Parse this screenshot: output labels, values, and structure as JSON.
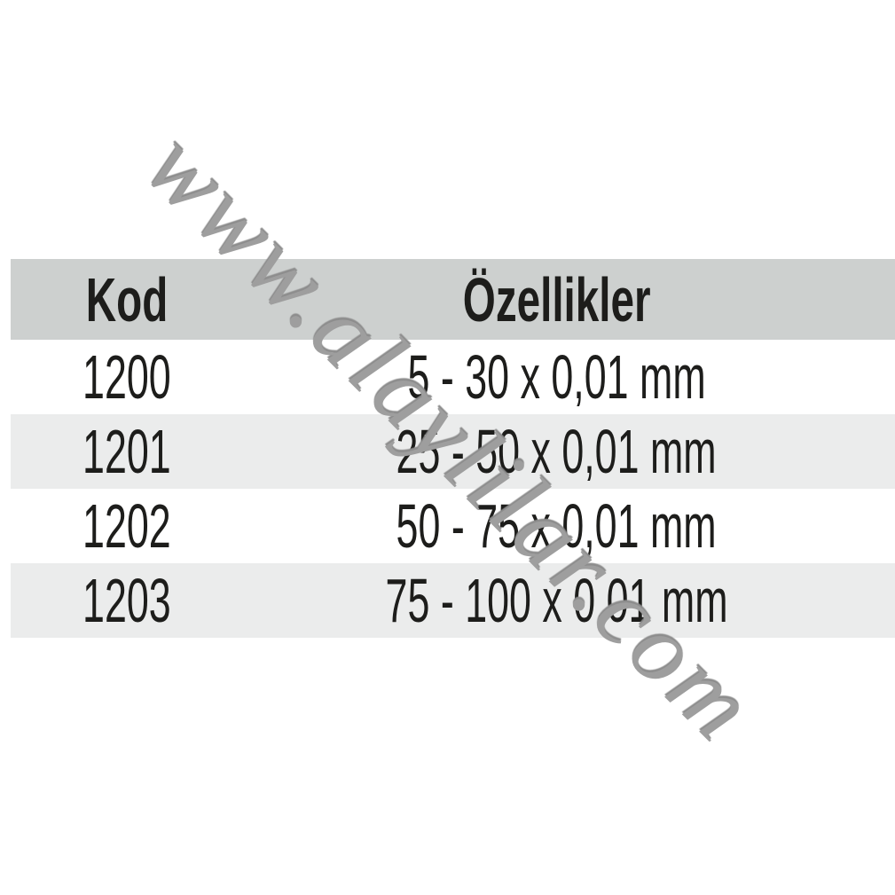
{
  "watermark": {
    "text": "www.alaylilar.com",
    "color": "#9e9e9e"
  },
  "table": {
    "header": {
      "kod": "Kod",
      "ozellikler": "Özellikler"
    },
    "rows": [
      {
        "kod": "1200",
        "ozellikler": "5 - 30 x 0,01 mm"
      },
      {
        "kod": "1201",
        "ozellikler": "25 - 50 x 0,01 mm"
      },
      {
        "kod": "1202",
        "ozellikler": "50 - 75 x 0,01 mm"
      },
      {
        "kod": "1203",
        "ozellikler": "75 - 100 x 0,01 mm"
      }
    ],
    "colors": {
      "header_bg": "#cdd0cf",
      "alt_row_bg": "#ebecec",
      "text": "#1d1d1b"
    }
  }
}
